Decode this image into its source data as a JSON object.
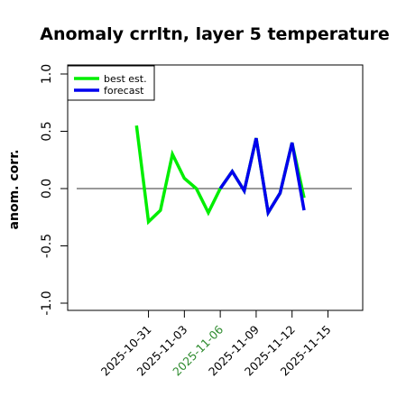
{
  "chart_data": {
    "type": "line",
    "title": "Anomaly crrltn, layer 5 temperature",
    "xlabel": "",
    "ylabel": "anom. corr.",
    "ylim": [
      -1.0,
      1.0
    ],
    "y_ticks": [
      "-1.0",
      "-0.5",
      "0.0",
      "0.5",
      "1.0"
    ],
    "x_ticks": [
      {
        "label": "2025-10-31",
        "value": "2025-10-31",
        "color": "#000000"
      },
      {
        "label": "2025-11-03",
        "value": "2025-11-03",
        "color": "#000000"
      },
      {
        "label": "2025-11-06",
        "value": "2025-11-06",
        "color": "#2e8b2e"
      },
      {
        "label": "2025-11-09",
        "value": "2025-11-09",
        "color": "#000000"
      },
      {
        "label": "2025-11-12",
        "value": "2025-11-12",
        "color": "#000000"
      },
      {
        "label": "2025-11-15",
        "value": "2025-11-15",
        "color": "#000000"
      }
    ],
    "x_range": [
      "2025-10-25",
      "2025-11-17"
    ],
    "reference_line": 0.0,
    "legend_position": "top-left",
    "grid": false,
    "series": [
      {
        "name": "best est.",
        "color": "#00ee00",
        "points": [
          {
            "x": "2025-10-30",
            "y": 0.55
          },
          {
            "x": "2025-10-31",
            "y": -0.29
          },
          {
            "x": "2025-11-01",
            "y": -0.19
          },
          {
            "x": "2025-11-02",
            "y": 0.3
          },
          {
            "x": "2025-11-03",
            "y": 0.09
          },
          {
            "x": "2025-11-04",
            "y": 0.0
          },
          {
            "x": "2025-11-05",
            "y": -0.21
          },
          {
            "x": "2025-11-06",
            "y": 0.0
          },
          {
            "x": "2025-11-07",
            "y": 0.15
          },
          {
            "x": "2025-11-08",
            "y": -0.02
          },
          {
            "x": "2025-11-09",
            "y": 0.44
          },
          {
            "x": "2025-11-10",
            "y": -0.21
          },
          {
            "x": "2025-11-11",
            "y": -0.04
          },
          {
            "x": "2025-11-12",
            "y": 0.4
          },
          {
            "x": "2025-11-13",
            "y": -0.08
          }
        ]
      },
      {
        "name": "forecast",
        "color": "#0000ee",
        "points": [
          {
            "x": "2025-11-06",
            "y": 0.0
          },
          {
            "x": "2025-11-07",
            "y": 0.15
          },
          {
            "x": "2025-11-08",
            "y": -0.02
          },
          {
            "x": "2025-11-09",
            "y": 0.44
          },
          {
            "x": "2025-11-10",
            "y": -0.21
          },
          {
            "x": "2025-11-11",
            "y": -0.04
          },
          {
            "x": "2025-11-12",
            "y": 0.4
          },
          {
            "x": "2025-11-13",
            "y": -0.19
          }
        ]
      }
    ]
  }
}
